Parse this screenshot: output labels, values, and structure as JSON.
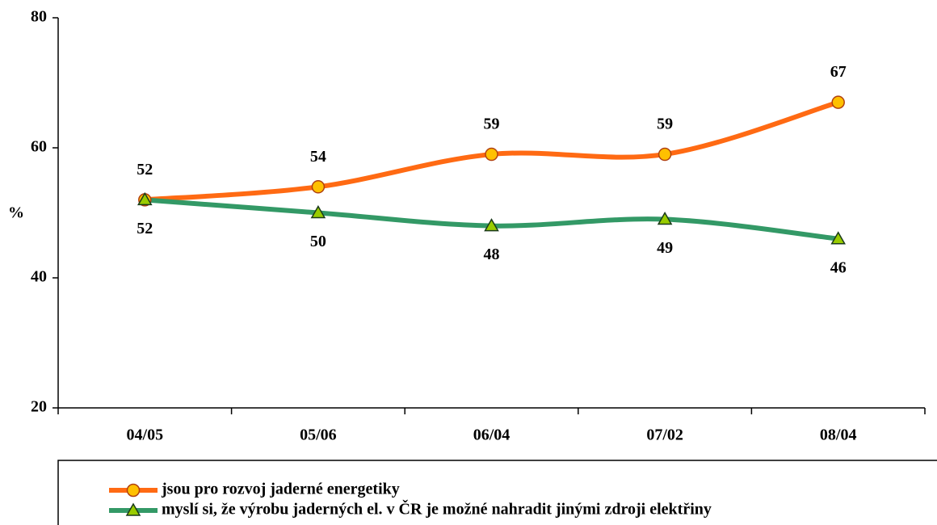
{
  "chart_data": {
    "type": "line",
    "y_label": "%",
    "categories": [
      "04/05",
      "05/06",
      "06/04",
      "07/02",
      "08/04"
    ],
    "series": [
      {
        "name": "jsou pro rozvoj jaderné energetiky",
        "color": "#ff6a13",
        "marker": "circle",
        "marker_color": "#ffc000",
        "values": [
          52,
          54,
          59,
          59,
          67
        ]
      },
      {
        "name": "myslí si, že výrobu jaderných el. v ČR je možné nahradit jinými zdroji elektřiny",
        "color": "#339966",
        "marker": "triangle",
        "marker_color": "#99cc00",
        "values": [
          52,
          50,
          48,
          49,
          46
        ]
      }
    ],
    "ylim": [
      20,
      80
    ],
    "yticks": [
      20,
      40,
      60,
      80
    ]
  }
}
